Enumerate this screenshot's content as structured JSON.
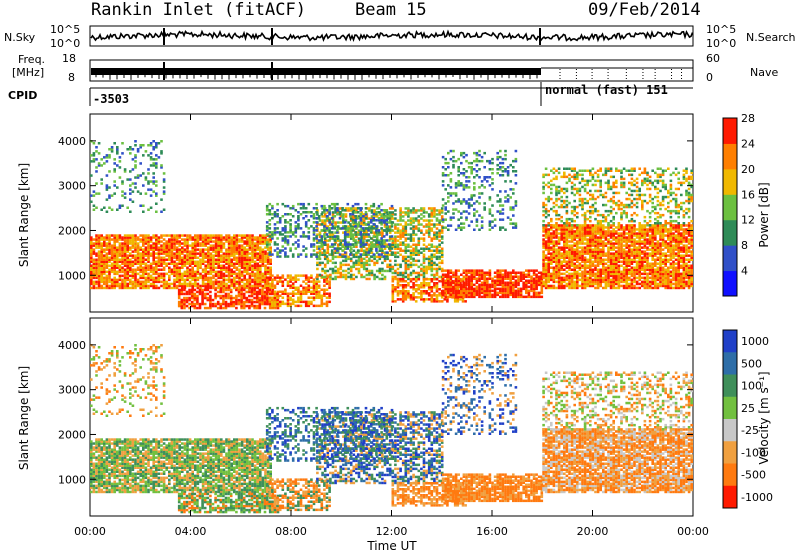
{
  "header": {
    "station": "Rankin Inlet (fitACF)",
    "beam": "Beam 15",
    "date": "09/Feb/2014"
  },
  "noise_panel": {
    "left_label": "N.Sky",
    "right_label": "N.Search",
    "left_ticks": [
      "10^5",
      "10^0"
    ],
    "right_ticks": [
      "10^5",
      "10^0"
    ]
  },
  "freq_panel": {
    "left_label_1": "Freq.",
    "left_label_2": "[MHz]",
    "right_label": "Nave",
    "left_ticks": [
      "18",
      "8"
    ],
    "right_ticks": [
      "60",
      "0"
    ]
  },
  "cpid": {
    "label": "CPID",
    "first_id": "-3503",
    "second_id": "normal (fast) 151"
  },
  "chart_data": [
    {
      "type": "heatmap",
      "parameter": "Power",
      "ylabel": "Slant Range [km]",
      "xlabel": "",
      "ylim": [
        180,
        4600
      ],
      "yticks": [
        1000,
        2000,
        3000,
        4000
      ],
      "colorbar_label": "Power [dB]",
      "colorbar_ticks": [
        "4",
        "8",
        "12",
        "16",
        "20",
        "24",
        "28"
      ],
      "colorbar_colors": [
        "#1010ff",
        "#3050c8",
        "#2e8b57",
        "#6cc040",
        "#f0b800",
        "#ff7f00",
        "#ff1a00"
      ]
    },
    {
      "type": "heatmap",
      "parameter": "Velocity",
      "ylabel": "Slant Range [km]",
      "xlabel": "Time UT",
      "ylim": [
        180,
        4600
      ],
      "yticks": [
        1000,
        2000,
        3000,
        4000
      ],
      "xticks": [
        "00:00",
        "04:00",
        "08:00",
        "12:00",
        "16:00",
        "20:00",
        "00:00"
      ],
      "colorbar_label": "Velocity [m s⁻¹]",
      "colorbar_ticks": [
        "1000",
        "500",
        "100",
        "25",
        "-25",
        "-100",
        "-500",
        "-1000"
      ],
      "colorbar_colors": [
        "#2040c8",
        "#2e6ea8",
        "#3f8f5a",
        "#72c040",
        "#c8c8c8",
        "#f0a040",
        "#ff7a10",
        "#ff1a00"
      ]
    }
  ]
}
